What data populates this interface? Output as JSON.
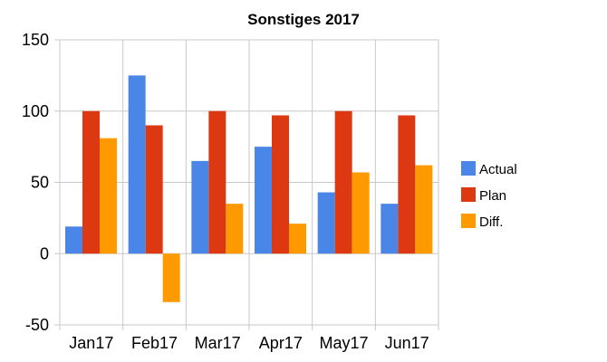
{
  "chart_data": {
    "type": "bar",
    "title": "Sonstiges 2017",
    "xlabel": "",
    "ylabel": "",
    "categories": [
      "Jan17",
      "Feb17",
      "Mar17",
      "Apr17",
      "May17",
      "Jun17"
    ],
    "series": [
      {
        "name": "Actual",
        "color": "#4a86e8",
        "values": [
          19,
          125,
          65,
          75,
          43,
          35
        ]
      },
      {
        "name": "Plan",
        "color": "#dc3912",
        "values": [
          100,
          90,
          100,
          97,
          100,
          97
        ]
      },
      {
        "name": "Diff.",
        "color": "#ff9900",
        "values": [
          81,
          -34,
          35,
          21,
          57,
          62
        ]
      }
    ],
    "ylim": [
      -50,
      150
    ],
    "yticks": [
      -50,
      0,
      50,
      100,
      150
    ],
    "ytick_labels": [
      "-50",
      "0",
      "50",
      "100",
      "150"
    ],
    "grid": true,
    "legend_position": "right"
  }
}
